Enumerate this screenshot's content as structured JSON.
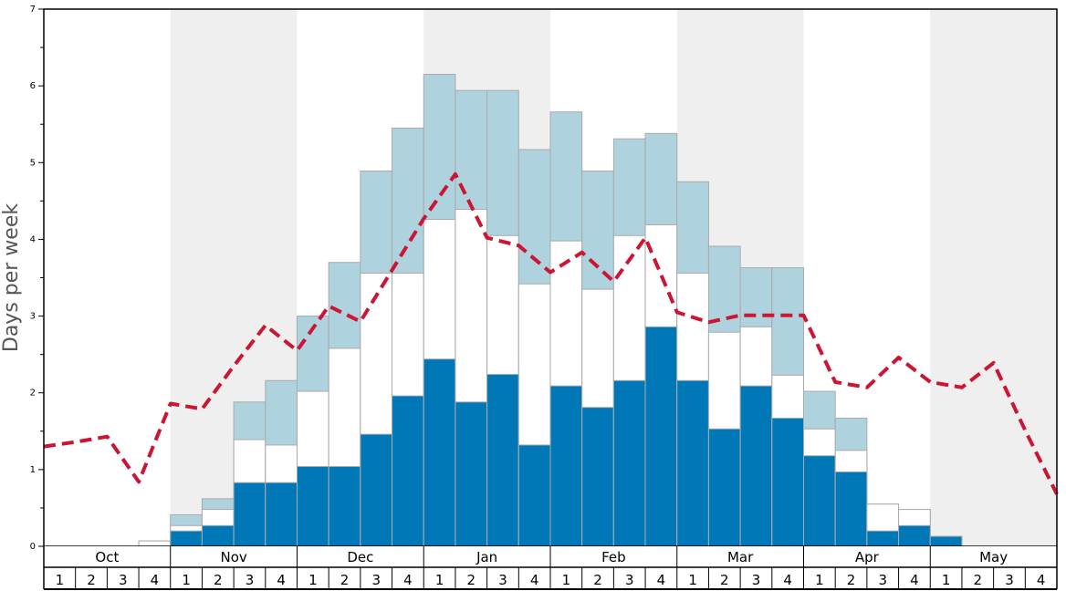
{
  "chart_data": {
    "type": "bar",
    "ylabel": "Days per week",
    "ylim": [
      0,
      7
    ],
    "yticks": [
      "0",
      "1",
      "2",
      "3",
      "4",
      "5",
      "6",
      "7"
    ],
    "months": [
      "Oct",
      "Nov",
      "Dec",
      "Jan",
      "Feb",
      "Mar",
      "Apr",
      "May"
    ],
    "weeks": [
      "1",
      "2",
      "3",
      "4"
    ],
    "shaded_months": [
      "Nov",
      "Jan",
      "Mar",
      "May"
    ],
    "colors": {
      "dark": "#0077b6",
      "white": "#ffffff",
      "light": "#aed2de",
      "line": "#cc1533",
      "band": "#efefef",
      "bar_border": "#aaaaaa"
    },
    "series": [
      {
        "name": "",
        "color": "#0077b6",
        "values": [
          0,
          0,
          0,
          0,
          0.2,
          0.27,
          0.83,
          0.83,
          1.04,
          1.04,
          1.46,
          1.96,
          2.44,
          1.88,
          2.24,
          1.32,
          2.09,
          1.81,
          2.16,
          2.86,
          2.16,
          1.53,
          2.09,
          1.67,
          1.18,
          0.97,
          0.2,
          0.27,
          0.13,
          0,
          0,
          0
        ]
      },
      {
        "name": "",
        "color": "#ffffff",
        "values": [
          0,
          0,
          0,
          0.07,
          0.27,
          0.48,
          1.39,
          1.32,
          2.02,
          2.58,
          3.56,
          3.56,
          4.26,
          4.39,
          4.05,
          3.42,
          3.98,
          3.35,
          4.05,
          4.19,
          3.56,
          2.79,
          2.86,
          2.23,
          1.53,
          1.25,
          0.55,
          0.48,
          0.13,
          0,
          0,
          0
        ]
      },
      {
        "name": "",
        "color": "#aed2de",
        "values": [
          0,
          0,
          0,
          0.07,
          0.41,
          0.62,
          1.88,
          2.16,
          3.0,
          3.7,
          4.89,
          5.45,
          6.15,
          5.94,
          5.94,
          5.17,
          5.66,
          4.89,
          5.31,
          5.38,
          4.75,
          3.91,
          3.63,
          3.63,
          2.02,
          1.67,
          0.55,
          0.48,
          0.13,
          0,
          0,
          0
        ]
      }
    ],
    "line": {
      "name": "",
      "color": "#cc1533",
      "values": [
        1.3,
        1.36,
        1.43,
        0.84,
        1.86,
        1.79,
        2.35,
        2.88,
        2.55,
        3.13,
        2.93,
        3.6,
        4.27,
        4.85,
        4.02,
        3.92,
        3.57,
        3.83,
        3.45,
        4.02,
        3.05,
        2.92,
        3.01,
        3.01,
        3.01,
        2.14,
        2.07,
        2.46,
        2.14,
        2.07,
        2.39,
        1.51,
        0.68
      ]
    }
  }
}
